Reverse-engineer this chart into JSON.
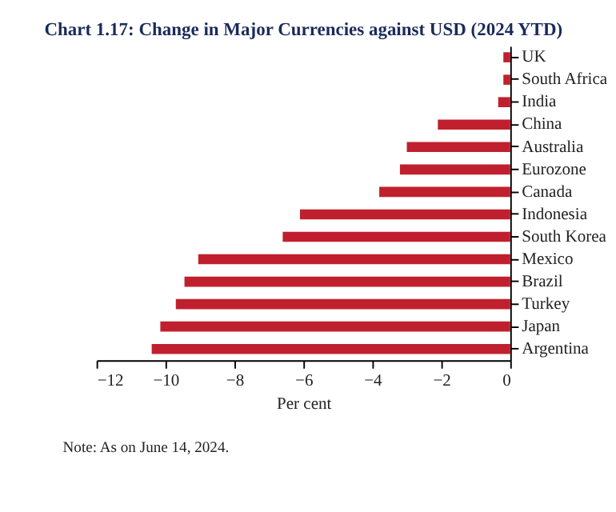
{
  "chart_data": {
    "type": "bar",
    "orientation": "horizontal",
    "title": "Chart 1.17: Change in Major Currencies against USD (2024 YTD)",
    "categories": [
      "UK",
      "South Africa",
      "India",
      "China",
      "Australia",
      "Eurozone",
      "Canada",
      "Indonesia",
      "South Korea",
      "Mexico",
      "Brazil",
      "Turkey",
      "Japan",
      "Argentina"
    ],
    "values": [
      -0.2,
      -0.2,
      -0.35,
      -2.1,
      -3.0,
      -3.2,
      -3.8,
      -6.1,
      -6.6,
      -9.05,
      -9.45,
      -9.7,
      -10.15,
      -10.4
    ],
    "color": "#c0202e",
    "xlim": [
      -12,
      0
    ],
    "xticks": [
      -12,
      -10,
      -8,
      -6,
      -4,
      -2,
      0
    ],
    "xlabel": "Per cent",
    "grid": false,
    "annotations": [
      "Note: As on June 14, 2024."
    ]
  }
}
